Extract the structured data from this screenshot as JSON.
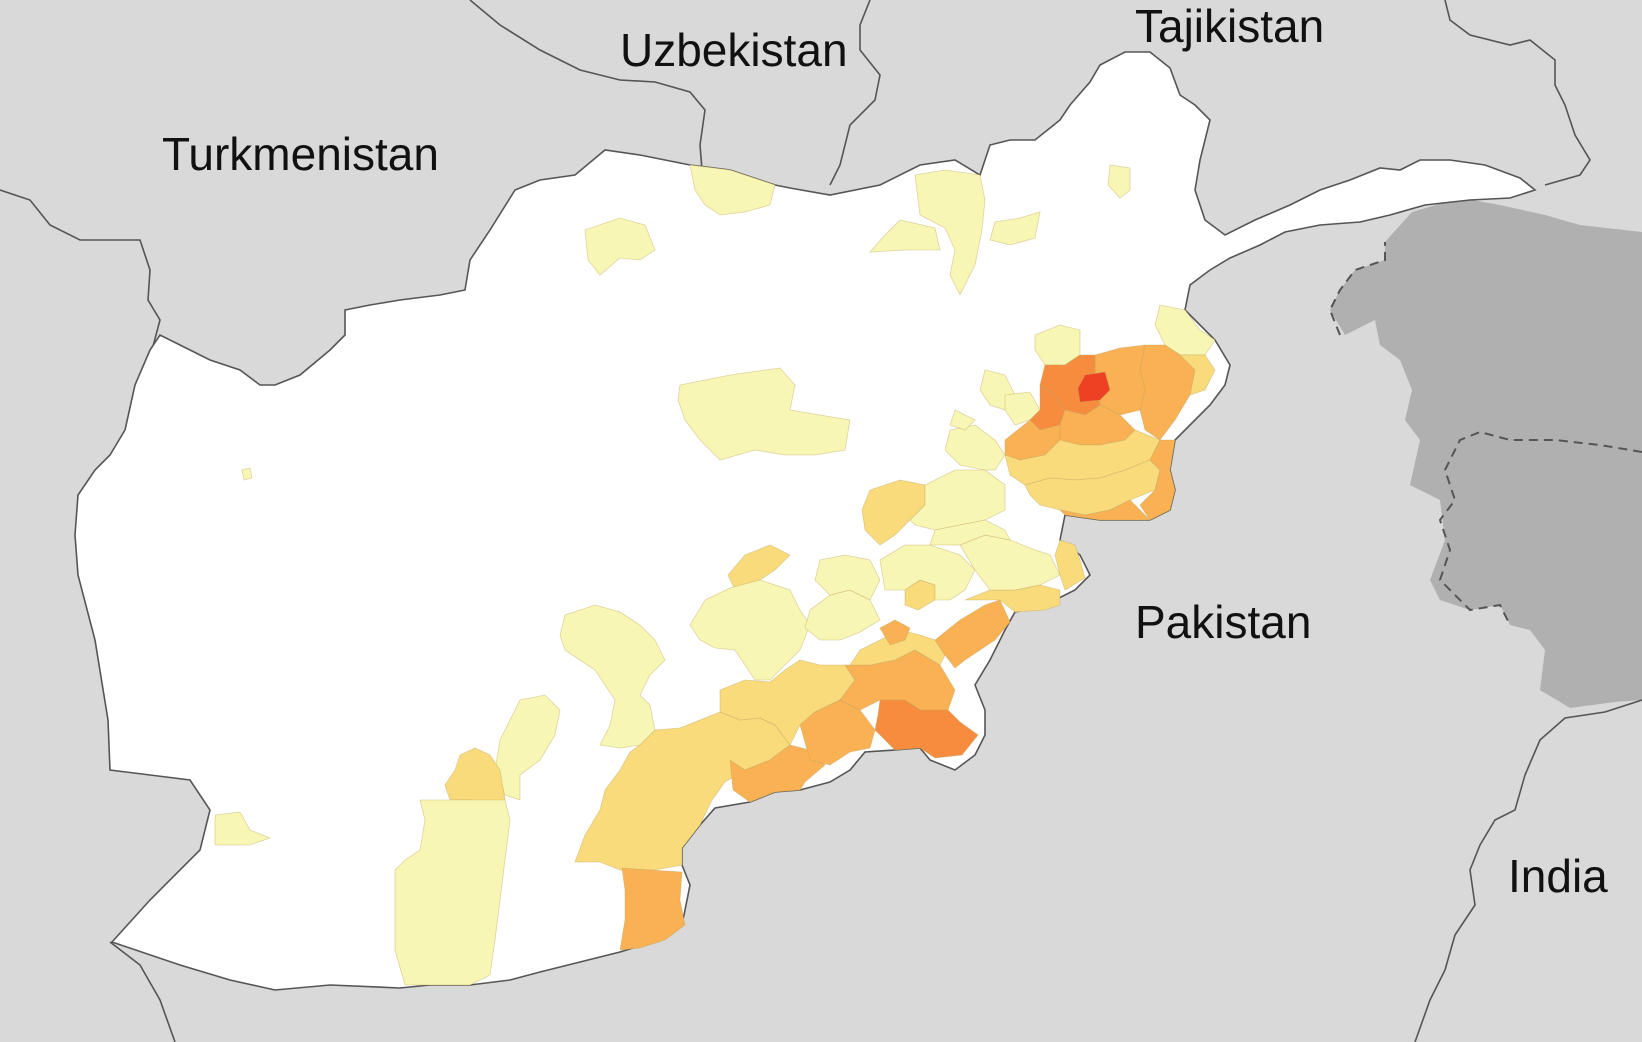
{
  "map": {
    "countries": [
      {
        "key": "turkmenistan",
        "label": "Turkmenistan"
      },
      {
        "key": "uzbekistan",
        "label": "Uzbekistan"
      },
      {
        "key": "tajikistan",
        "label": "Tajikistan"
      },
      {
        "key": "pakistan",
        "label": "Pakistan"
      },
      {
        "key": "india",
        "label": "India"
      }
    ],
    "colors": {
      "background_land": "#d9d9d9",
      "focus_country": "#ffffff",
      "disputed_region": "#b0b0b0",
      "borders": "#555555",
      "level_1": "#f8f6b4",
      "level_2": "#f9db7c",
      "level_3": "#f9b154",
      "level_4": "#f78c3f",
      "level_5": "#ee4124"
    }
  }
}
